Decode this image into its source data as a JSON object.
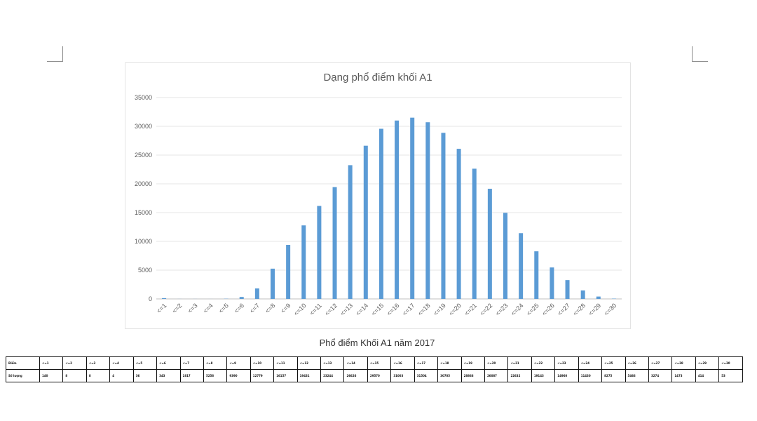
{
  "chart_data": {
    "type": "bar",
    "title": "Dạng phổ điểm khối A1",
    "categories": [
      "<=1",
      "<=2",
      "<=3",
      "<=4",
      "<=5",
      "<=6",
      "<=7",
      "<=8",
      "<=9",
      "<=10",
      "<=11",
      "<=12",
      "<=13",
      "<=14",
      "<=15",
      "<=16",
      "<=17",
      "<=18",
      "<=19",
      "<=20",
      "<=21",
      "<=22",
      "<=23",
      "<=24",
      "<=25",
      "<=26",
      "<=27",
      "<=28",
      "<=29",
      "<=30"
    ],
    "values": [
      140,
      8,
      8,
      4,
      36,
      343,
      1817,
      5258,
      9390,
      12779,
      16157,
      19431,
      23244,
      26626,
      29570,
      31003,
      31504,
      30705,
      28866,
      26087,
      22632,
      19143,
      14960,
      11430,
      8275,
      5466,
      3274,
      1473,
      414,
      53
    ],
    "yticks": [
      "0",
      "5000",
      "10000",
      "15000",
      "20000",
      "25000",
      "30000",
      "35000"
    ],
    "ylim": [
      0,
      35000
    ],
    "grid": true,
    "bar_color": "#5b9bd5"
  },
  "caption": "Phổ điểm Khối A1 năm 2017",
  "table": {
    "header_label": "Điểm",
    "count_label": "Số lượng",
    "columns": [
      "<=1",
      "<=2",
      "<=3",
      "<=4",
      "<=5",
      "<=6",
      "<=7",
      "<=8",
      "<=9",
      "<=10",
      "<=11",
      "<=12",
      "<=13",
      "<=14",
      "<=15",
      "<=16",
      "<=17",
      "<=18",
      "<=19",
      "<=20",
      "<=21",
      "<=22",
      "<=23",
      "<=24",
      "<=25",
      "<=26",
      "<=27",
      "<=28",
      "<=29",
      "<=30"
    ],
    "counts": [
      "140",
      "8",
      "8",
      "4",
      "36",
      "343",
      "1817",
      "5258",
      "9390",
      "12779",
      "16157",
      "19431",
      "23244",
      "26626",
      "29570",
      "31003",
      "31504",
      "30705",
      "28866",
      "26087",
      "22632",
      "19143",
      "14960",
      "11430",
      "8275",
      "5466",
      "3274",
      "1473",
      "414",
      "53"
    ]
  }
}
